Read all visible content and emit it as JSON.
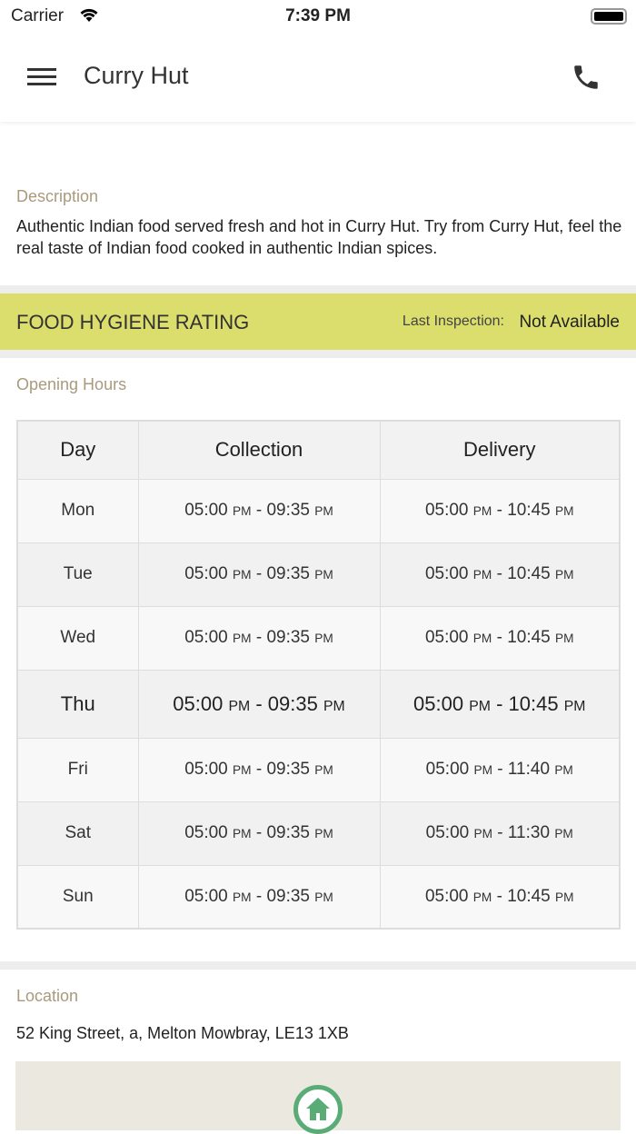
{
  "status_bar": {
    "carrier": "Carrier",
    "time": "7:39 PM"
  },
  "header": {
    "title": "Curry Hut"
  },
  "description": {
    "label": "Description",
    "text": "Authentic Indian food served fresh and hot in Curry Hut. Try from Curry Hut, feel the real taste of Indian food cooked in authentic Indian spices."
  },
  "hygiene": {
    "title": "FOOD HYGIENE RATING",
    "last_inspection_label": "Last Inspection:",
    "last_inspection_value": "Not Available",
    "color": "#dbdd6c"
  },
  "opening_hours": {
    "label": "Opening Hours",
    "columns": [
      "Day",
      "Collection",
      "Delivery"
    ],
    "rows": [
      {
        "day": "Mon",
        "collection": [
          "05:00",
          "PM",
          "09:35",
          "PM"
        ],
        "delivery": [
          "05:00",
          "PM",
          "10:45",
          "PM"
        ]
      },
      {
        "day": "Tue",
        "collection": [
          "05:00",
          "PM",
          "09:35",
          "PM"
        ],
        "delivery": [
          "05:00",
          "PM",
          "10:45",
          "PM"
        ]
      },
      {
        "day": "Wed",
        "collection": [
          "05:00",
          "PM",
          "09:35",
          "PM"
        ],
        "delivery": [
          "05:00",
          "PM",
          "10:45",
          "PM"
        ]
      },
      {
        "day": "Thu",
        "today": true,
        "collection": [
          "05:00",
          "PM",
          "09:35",
          "PM"
        ],
        "delivery": [
          "05:00",
          "PM",
          "10:45",
          "PM"
        ]
      },
      {
        "day": "Fri",
        "collection": [
          "05:00",
          "PM",
          "09:35",
          "PM"
        ],
        "delivery": [
          "05:00",
          "PM",
          "11:40",
          "PM"
        ]
      },
      {
        "day": "Sat",
        "collection": [
          "05:00",
          "PM",
          "09:35",
          "PM"
        ],
        "delivery": [
          "05:00",
          "PM",
          "11:30",
          "PM"
        ]
      },
      {
        "day": "Sun",
        "collection": [
          "05:00",
          "PM",
          "09:35",
          "PM"
        ],
        "delivery": [
          "05:00",
          "PM",
          "10:45",
          "PM"
        ]
      }
    ]
  },
  "location": {
    "label": "Location",
    "address": "52 King Street, a, Melton Mowbray, LE13 1XB"
  },
  "icons": {
    "menu": "hamburger-icon",
    "call": "phone-icon",
    "map_pin": "home-pin-icon"
  }
}
